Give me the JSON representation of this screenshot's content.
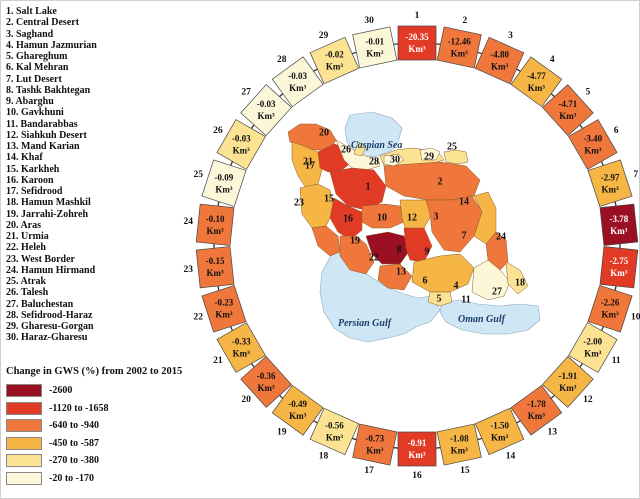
{
  "basins": [
    "1. Salt Lake",
    "2. Central Desert",
    "3. Saghand",
    "4. Hamun Jazmurian",
    "5. Ghareghum",
    "6. Kal Mehran",
    "7. Lut Desert",
    "8. Tashk Bakhtegan",
    "9. Abarghu",
    "10. Gavkhuni",
    "11. Bandarabbas",
    "12. Siahkuh Desert",
    "13. Mand Karian",
    "14. Khaf",
    "15. Karkheh",
    "16. Karoon",
    "17. Sefidrood",
    "18. Hamun Mashkil",
    "19. Jarrahi-Zohreh",
    "20. Aras",
    "21. Urmia",
    "22. Heleh",
    "23. West Border",
    "24. Hamun Hirmand",
    "25. Atrak",
    "26. Talesh",
    "27. Baluchestan",
    "28. Sefidrood-Haraz",
    "29. Gharesu-Gorgan",
    "30. Haraz-Gharesu"
  ],
  "legend": {
    "title": "Change in GWS (%) from 2002 to 2015",
    "items": [
      {
        "label": "-2600",
        "color": "#9b0f23"
      },
      {
        "label": "-1120 to -1658",
        "color": "#e23b25"
      },
      {
        "label": "-640 to -940",
        "color": "#f0773b"
      },
      {
        "label": "-450 to -587",
        "color": "#f6b646"
      },
      {
        "label": "-270 to -380",
        "color": "#fbe393"
      },
      {
        "label": "-20 to -170",
        "color": "#fdf7d9"
      }
    ]
  },
  "ring": [
    {
      "num": "1",
      "value": "-20.35",
      "color": "#e23b25"
    },
    {
      "num": "2",
      "value": "-12.46",
      "color": "#f0773b"
    },
    {
      "num": "3",
      "value": "-4.80",
      "color": "#f0773b"
    },
    {
      "num": "4",
      "value": "-4.77",
      "color": "#f6b646"
    },
    {
      "num": "5",
      "value": "-4.71",
      "color": "#f0773b"
    },
    {
      "num": "6",
      "value": "-3.40",
      "color": "#f0773b"
    },
    {
      "num": "7",
      "value": "-2.97",
      "color": "#f6b646"
    },
    {
      "num": "8",
      "value": "-3.78",
      "color": "#9b0f23"
    },
    {
      "num": "9",
      "value": "-2.75",
      "color": "#e23b25"
    },
    {
      "num": "10",
      "value": "-2.26",
      "color": "#f0773b"
    },
    {
      "num": "11",
      "value": "-2.00",
      "color": "#fbe393"
    },
    {
      "num": "12",
      "value": "-1.91",
      "color": "#f6b646"
    },
    {
      "num": "13",
      "value": "-1.78",
      "color": "#f0773b"
    },
    {
      "num": "14",
      "value": "-1.50",
      "color": "#f6b646"
    },
    {
      "num": "15",
      "value": "-1.08",
      "color": "#f6b646"
    },
    {
      "num": "16",
      "value": "-0.91",
      "color": "#e23b25"
    },
    {
      "num": "17",
      "value": "-0.73",
      "color": "#f0773b"
    },
    {
      "num": "18",
      "value": "-0.56",
      "color": "#fbe393"
    },
    {
      "num": "19",
      "value": "-0.49",
      "color": "#f6b646"
    },
    {
      "num": "20",
      "value": "-0.36",
      "color": "#f0773b"
    },
    {
      "num": "21",
      "value": "-0.33",
      "color": "#f6b646"
    },
    {
      "num": "22",
      "value": "-0.23",
      "color": "#f0773b"
    },
    {
      "num": "23",
      "value": "-0.15",
      "color": "#f0773b"
    },
    {
      "num": "24",
      "value": "-0.10",
      "color": "#f0773b"
    },
    {
      "num": "25",
      "value": "-0.09",
      "color": "#fdf7d9"
    },
    {
      "num": "26",
      "value": "-0.03",
      "color": "#fbe393"
    },
    {
      "num": "27",
      "value": "-0.03",
      "color": "#fdf7d9"
    },
    {
      "num": "28",
      "value": "-0.03",
      "color": "#fdf7d9"
    },
    {
      "num": "29",
      "value": "-0.02",
      "color": "#fbe393"
    },
    {
      "num": "30",
      "value": "-0.01",
      "color": "#fdf7d9"
    }
  ],
  "unit_text": "Km³",
  "water": {
    "caspian": "Caspian Sea",
    "persian": "Persian Gulf",
    "oman": "Oman Gulf"
  },
  "map_labels": [
    "1",
    "2",
    "3",
    "4",
    "5",
    "6",
    "7",
    "8",
    "9",
    "10",
    "11",
    "12",
    "13",
    "14",
    "15",
    "16",
    "17",
    "18",
    "19",
    "20",
    "21",
    "22",
    "23",
    "24",
    "25",
    "26",
    "27",
    "28",
    "29",
    "30"
  ],
  "colors": {
    "ring_stroke": "#333333",
    "water": "#cfe6f5",
    "land_outline": "#8a5a2a"
  }
}
